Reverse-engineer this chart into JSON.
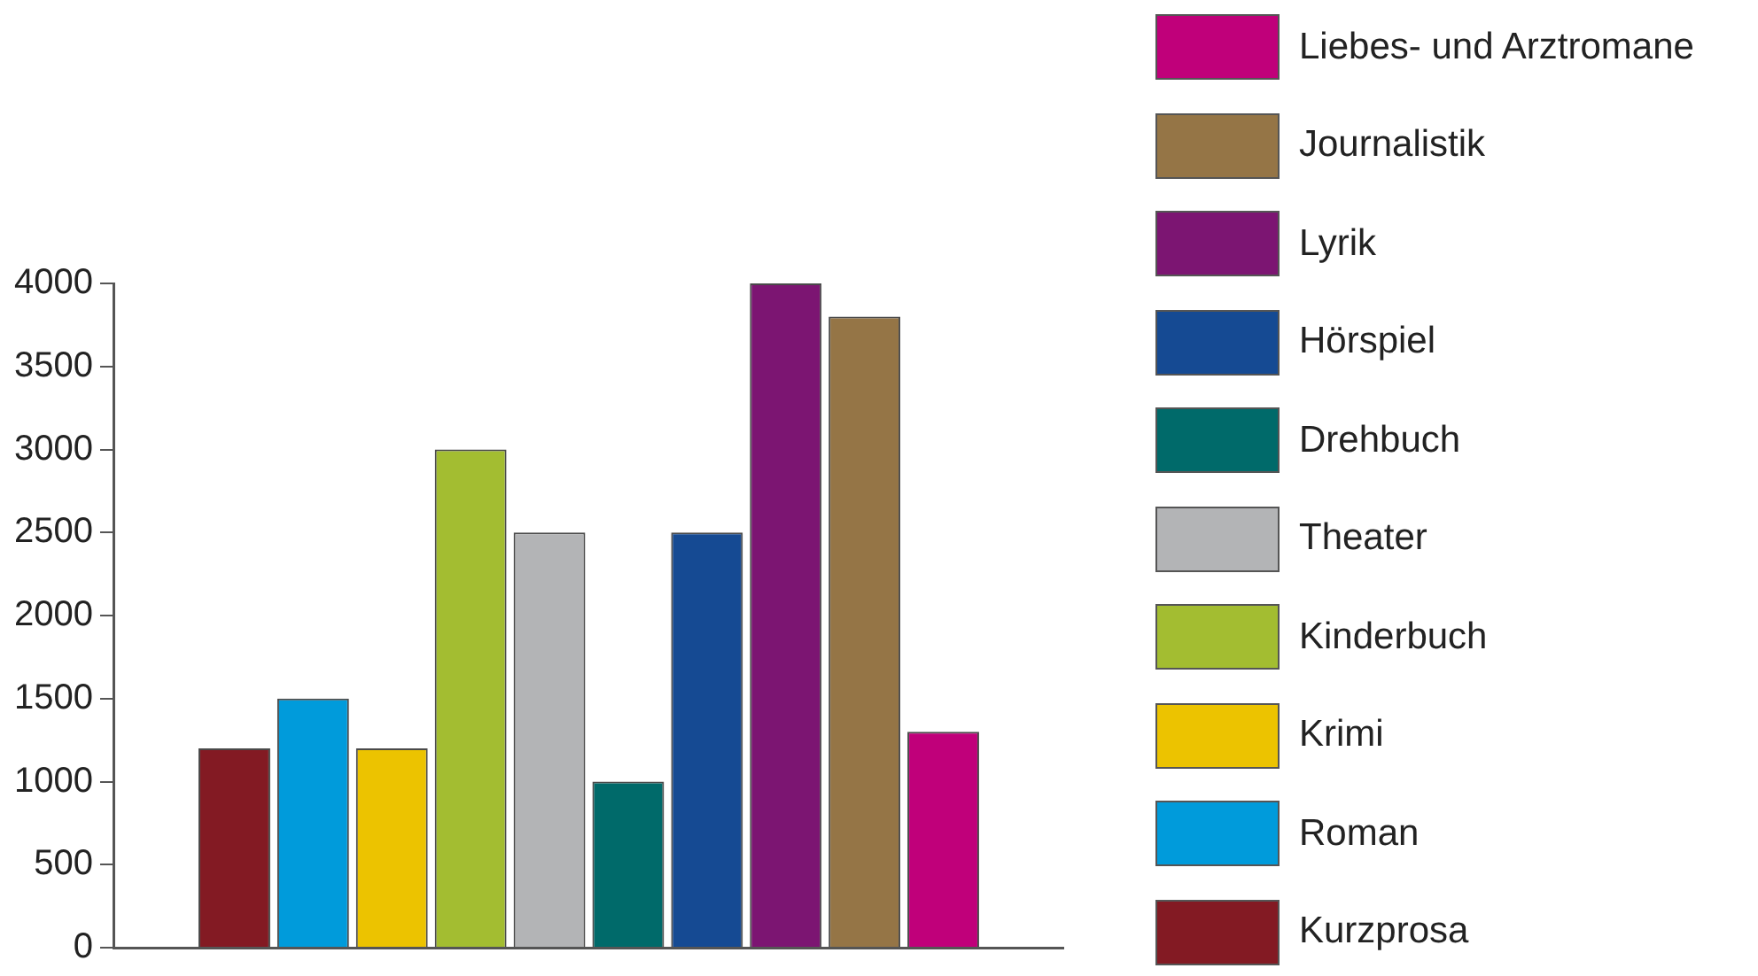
{
  "chart_data": {
    "type": "bar",
    "categories": [
      null
    ],
    "ylim": [
      0,
      4000
    ],
    "yticks": [
      0,
      500,
      1000,
      1500,
      2000,
      2500,
      3000,
      3500,
      4000
    ],
    "tick_labels": "y",
    "legend": "right",
    "series": [
      {
        "name": "Kurzprosa",
        "color": "#831a23",
        "values": [
          1200
        ]
      },
      {
        "name": "Roman",
        "color": "#009bdb",
        "values": [
          1500
        ]
      },
      {
        "name": "Krimi",
        "color": "#ecc300",
        "values": [
          1200
        ]
      },
      {
        "name": "Kinderbuch",
        "color": "#a3bd31",
        "values": [
          3000
        ]
      },
      {
        "name": "Theater",
        "color": "#b3b4b6",
        "values": [
          2500
        ]
      },
      {
        "name": "Drehbuch",
        "color": "#006a6a",
        "values": [
          1000
        ]
      },
      {
        "name": "Hörspiel",
        "color": "#154a93",
        "values": [
          2500
        ]
      },
      {
        "name": "Lyrik",
        "color": "#7c1572",
        "values": [
          4000
        ]
      },
      {
        "name": "Journalistik",
        "color": "#957546",
        "values": [
          3800
        ]
      },
      {
        "name": "Liebes- und Arztromane",
        "color": "#c0007a",
        "values": [
          1300
        ]
      }
    ]
  }
}
